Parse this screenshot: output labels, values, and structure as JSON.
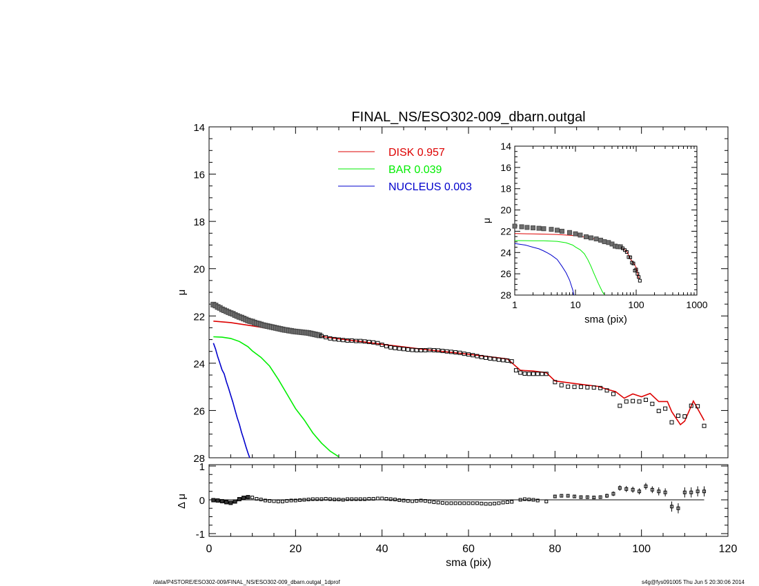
{
  "chart_data": [
    {
      "type": "scatter",
      "title": "FINAL_NS/ESO302-009_dbarn.outgal",
      "xlabel": "",
      "ylabel": "μ",
      "xlim": [
        0,
        120
      ],
      "ylim": [
        28,
        14
      ],
      "y_inverted": true,
      "grid": false,
      "legend_placement": "top-center",
      "xticks": [
        0,
        20,
        40,
        60,
        80,
        100,
        120
      ],
      "yticks": [
        14,
        16,
        18,
        20,
        22,
        24,
        26,
        28
      ],
      "data_points": {
        "name": "data",
        "x": [
          1.0,
          1.5,
          2.0,
          2.5,
          3.0,
          3.5,
          4.0,
          4.5,
          5.0,
          5.5,
          6.0,
          6.5,
          7.0,
          7.5,
          8.0,
          8.5,
          9.0,
          9.5,
          10.0,
          10.5,
          11.0,
          11.5,
          12.0,
          12.5,
          13.0,
          13.5,
          14.0,
          14.5,
          15.0,
          15.5,
          16.0,
          16.5,
          17.0,
          17.5,
          18.0,
          18.5,
          19.0,
          19.5,
          20.0,
          20.5,
          21.0,
          21.5,
          22.0,
          22.5,
          23.0,
          23.5,
          24.0,
          24.5,
          25.0,
          25.5,
          26.0,
          27.0,
          28.0,
          29.0,
          30.0,
          31.0,
          32.0,
          33.0,
          34.0,
          35.0,
          36.0,
          37.0,
          38.0,
          39.0,
          40.0,
          41.0,
          42.0,
          43.0,
          44.0,
          45.0,
          46.0,
          47.0,
          48.0,
          49.0,
          50.0,
          51.0,
          52.0,
          53.0,
          54.0,
          55.0,
          56.0,
          57.0,
          58.0,
          59.0,
          60.0,
          61.0,
          62.0,
          63.0,
          64.0,
          65.0,
          66.0,
          67.0,
          68.0,
          69.0,
          70.0,
          71.0,
          72.0,
          73.0,
          74.0,
          75.0,
          76.0,
          77.0,
          78.0,
          80.0,
          81.5,
          83.0,
          84.5,
          86.0,
          87.5,
          89.0,
          90.5,
          92.0,
          93.5,
          95.0,
          96.5,
          98.0,
          99.5,
          101.0,
          102.5,
          104.0,
          105.5,
          107.0,
          108.5,
          110.0,
          111.5,
          113.0,
          114.5
        ],
        "y": [
          21.52,
          21.56,
          21.62,
          21.66,
          21.72,
          21.76,
          21.8,
          21.84,
          21.88,
          21.91,
          21.96,
          22.0,
          22.04,
          22.07,
          22.11,
          22.15,
          22.19,
          22.22,
          22.24,
          22.28,
          22.31,
          22.33,
          22.36,
          22.39,
          22.41,
          22.43,
          22.45,
          22.47,
          22.49,
          22.51,
          22.53,
          22.55,
          22.57,
          22.59,
          22.6,
          22.62,
          22.63,
          22.65,
          22.66,
          22.67,
          22.68,
          22.69,
          22.7,
          22.71,
          22.72,
          22.74,
          22.76,
          22.78,
          22.8,
          22.82,
          22.85,
          22.9,
          22.95,
          22.98,
          23.0,
          23.02,
          23.04,
          23.04,
          23.06,
          23.06,
          23.08,
          23.1,
          23.12,
          23.15,
          23.22,
          23.28,
          23.33,
          23.36,
          23.38,
          23.4,
          23.42,
          23.44,
          23.45,
          23.45,
          23.45,
          23.44,
          23.45,
          23.46,
          23.48,
          23.5,
          23.52,
          23.54,
          23.56,
          23.6,
          23.63,
          23.66,
          23.7,
          23.74,
          23.77,
          23.8,
          23.82,
          23.85,
          23.87,
          23.89,
          23.92,
          24.3,
          24.4,
          24.44,
          24.45,
          24.45,
          24.45,
          24.45,
          24.45,
          24.8,
          24.93,
          24.99,
          25.0,
          25.0,
          25.02,
          25.03,
          25.05,
          25.15,
          25.3,
          25.8,
          25.62,
          25.6,
          25.62,
          25.55,
          25.72,
          26.02,
          25.92,
          26.5,
          26.22,
          26.25,
          25.8,
          25.82,
          26.65
        ]
      },
      "series": [
        {
          "name": "DISK",
          "label": "DISK  0.957",
          "color": "#dd0000",
          "x": [
            1,
            5,
            10,
            15,
            20,
            25,
            30,
            35,
            40,
            45,
            50,
            55,
            60,
            65,
            69,
            70,
            72,
            75,
            78,
            80,
            85,
            90,
            92,
            94,
            96,
            98,
            100,
            102,
            104,
            106,
            107,
            109,
            110,
            112,
            114.5
          ],
          "y": [
            22.22,
            22.28,
            22.42,
            22.57,
            22.71,
            22.84,
            22.97,
            23.08,
            23.2,
            23.31,
            23.42,
            23.52,
            23.62,
            23.73,
            23.82,
            23.98,
            24.3,
            24.33,
            24.4,
            24.75,
            24.87,
            24.98,
            25.1,
            25.2,
            25.48,
            25.3,
            25.42,
            25.28,
            25.62,
            25.62,
            26.05,
            26.6,
            26.45,
            25.6,
            26.42
          ]
        },
        {
          "name": "BAR",
          "label": "BAR  0.039",
          "color": "#00ee00",
          "x": [
            1,
            3,
            5,
            7,
            9,
            10,
            12,
            14,
            16,
            18,
            20,
            22,
            24,
            26,
            28,
            30
          ],
          "y": [
            22.88,
            22.9,
            22.95,
            23.08,
            23.3,
            23.48,
            23.75,
            24.12,
            24.68,
            25.3,
            25.92,
            26.4,
            26.95,
            27.38,
            27.72,
            27.96
          ]
        },
        {
          "name": "NUCLEUS",
          "label": "NUCLEUS  0.003",
          "color": "#0000cc",
          "x": [
            1,
            1.5,
            2,
            2.5,
            3,
            3.5,
            4,
            4.5,
            5,
            5.5,
            6,
            6.5,
            7,
            7.5,
            8,
            8.5,
            9,
            9.4
          ],
          "y": [
            23.15,
            23.4,
            23.72,
            24.0,
            24.28,
            24.45,
            24.78,
            25.05,
            25.35,
            25.65,
            25.98,
            26.3,
            26.58,
            26.92,
            27.2,
            27.52,
            27.8,
            28.0
          ]
        }
      ]
    },
    {
      "type": "scatter",
      "title": "",
      "xlabel": "sma (pix)",
      "ylabel": "μ",
      "x_scale": "log",
      "xlim": [
        1,
        1000
      ],
      "ylim": [
        28,
        14
      ],
      "y_inverted": true,
      "xticks": [
        1,
        10,
        100,
        1000
      ],
      "xtick_labels": [
        "1",
        "10",
        "100",
        "1000"
      ],
      "yticks": [
        14,
        16,
        18,
        20,
        22,
        24,
        26,
        28
      ],
      "data_points": {
        "name": "data",
        "x": [
          1.0,
          1.3,
          1.6,
          2.0,
          2.5,
          3.0,
          4.0,
          5.0,
          6.0,
          8.0,
          10.0,
          12.0,
          15.0,
          18.0,
          22.0,
          26.0,
          30.0,
          35.0,
          40.0,
          45.0,
          50.0,
          55.0,
          60.0,
          65.0,
          70.0,
          75.0,
          80.0,
          85.0,
          90.0,
          95.0,
          100.0,
          105.0,
          110.0,
          115.0
        ],
        "y": [
          21.52,
          21.58,
          21.64,
          21.68,
          21.72,
          21.76,
          21.82,
          21.9,
          22.0,
          22.12,
          22.24,
          22.36,
          22.52,
          22.62,
          22.72,
          22.84,
          22.98,
          23.06,
          23.2,
          23.4,
          23.45,
          23.46,
          23.6,
          23.77,
          23.95,
          24.43,
          24.45,
          24.95,
          25.03,
          25.7,
          25.6,
          26.0,
          26.3,
          26.65
        ]
      },
      "series": [
        {
          "name": "DISK",
          "color": "#dd0000",
          "x": [
            1,
            2,
            3,
            5,
            8,
            10,
            15,
            20,
            30,
            40,
            50,
            60,
            70,
            80,
            90,
            100,
            110,
            115
          ],
          "y": [
            22.22,
            22.25,
            22.27,
            22.3,
            22.38,
            22.42,
            22.57,
            22.71,
            22.97,
            23.2,
            23.42,
            23.62,
            23.9,
            24.6,
            24.98,
            25.4,
            26.4,
            26.42
          ]
        },
        {
          "name": "BAR",
          "color": "#00ee00",
          "x": [
            1,
            2,
            3,
            5,
            7,
            9,
            10,
            12,
            14,
            16,
            18,
            20,
            24,
            28,
            30
          ],
          "y": [
            22.88,
            22.89,
            22.9,
            22.95,
            23.08,
            23.3,
            23.48,
            23.75,
            24.12,
            24.68,
            25.3,
            25.92,
            26.95,
            27.72,
            27.96
          ]
        },
        {
          "name": "NUCLEUS",
          "color": "#0000cc",
          "x": [
            1,
            1.5,
            2,
            2.5,
            3,
            3.5,
            4,
            5,
            6,
            7,
            8,
            9,
            9.4
          ],
          "y": [
            23.15,
            23.3,
            23.5,
            23.65,
            23.85,
            24.05,
            24.25,
            24.65,
            25.3,
            25.9,
            26.6,
            27.5,
            28.0
          ]
        }
      ]
    },
    {
      "type": "scatter",
      "title": "",
      "xlabel": "sma (pix)",
      "ylabel": "Δ μ",
      "xlim": [
        0,
        120
      ],
      "ylim": [
        -1.1,
        1.0
      ],
      "xticks": [
        0,
        20,
        40,
        60,
        80,
        100,
        120
      ],
      "yticks": [
        -1,
        0,
        1
      ],
      "zero_line": true,
      "residuals": {
        "x": [
          1.0,
          2.0,
          3.0,
          4.0,
          5.0,
          6.0,
          7.0,
          8.0,
          9.0,
          10.0,
          11.0,
          12.0,
          13.0,
          14.0,
          15.0,
          16.0,
          17.0,
          18.0,
          19.0,
          20.0,
          21.0,
          22.0,
          23.0,
          24.0,
          25.0,
          26.0,
          27.0,
          28.0,
          29.0,
          30.0,
          31.0,
          32.0,
          33.0,
          34.0,
          35.0,
          36.0,
          37.0,
          38.0,
          39.0,
          40.0,
          41.0,
          42.0,
          43.0,
          44.0,
          45.0,
          46.0,
          47.0,
          48.0,
          49.0,
          50.0,
          51.0,
          52.0,
          53.0,
          54.0,
          55.0,
          56.0,
          57.0,
          58.0,
          59.0,
          60.0,
          61.0,
          62.0,
          63.0,
          64.0,
          65.0,
          66.0,
          67.0,
          68.0,
          69.0,
          70.0,
          72.0,
          73.0,
          74.0,
          75.0,
          76.0,
          78.0,
          80.0,
          81.5,
          83.0,
          84.5,
          86.0,
          87.5,
          89.0,
          90.5,
          92.0,
          93.5,
          95.0,
          96.5,
          98.0,
          99.5,
          101.0,
          102.5,
          104.0,
          105.5,
          107.0,
          108.5,
          110.0,
          111.5,
          113.0,
          114.5
        ],
        "y": [
          -0.01,
          -0.02,
          -0.04,
          -0.07,
          -0.09,
          -0.05,
          0.02,
          0.06,
          0.08,
          0.07,
          0.03,
          0.01,
          -0.02,
          -0.03,
          -0.04,
          -0.05,
          -0.05,
          -0.03,
          -0.02,
          -0.02,
          -0.01,
          0.0,
          0.01,
          0.02,
          0.02,
          0.02,
          0.03,
          0.02,
          0.01,
          0.01,
          0.0,
          0.02,
          0.02,
          0.02,
          0.02,
          0.02,
          0.03,
          0.03,
          0.04,
          0.04,
          0.03,
          0.02,
          0.01,
          -0.01,
          -0.02,
          -0.03,
          -0.04,
          -0.03,
          -0.02,
          -0.03,
          -0.05,
          -0.07,
          -0.08,
          -0.09,
          -0.1,
          -0.1,
          -0.1,
          -0.1,
          -0.1,
          -0.1,
          -0.1,
          -0.1,
          -0.11,
          -0.12,
          -0.12,
          -0.11,
          -0.1,
          -0.08,
          -0.07,
          -0.06,
          0.0,
          0.02,
          0.01,
          0.0,
          -0.02,
          -0.05,
          0.1,
          0.12,
          0.12,
          0.1,
          0.08,
          0.08,
          0.07,
          0.08,
          0.12,
          0.18,
          0.35,
          0.32,
          0.3,
          0.25,
          0.4,
          0.3,
          0.25,
          0.22,
          -0.2,
          -0.25,
          0.22,
          0.22,
          0.25,
          0.25
        ],
        "err": [
          0.02,
          0.02,
          0.02,
          0.02,
          0.02,
          0.02,
          0.02,
          0.02,
          0.02,
          0.02,
          0.02,
          0.02,
          0.02,
          0.02,
          0.02,
          0.02,
          0.02,
          0.02,
          0.02,
          0.02,
          0.02,
          0.02,
          0.02,
          0.02,
          0.02,
          0.02,
          0.02,
          0.02,
          0.02,
          0.02,
          0.02,
          0.02,
          0.02,
          0.02,
          0.02,
          0.02,
          0.02,
          0.02,
          0.02,
          0.02,
          0.02,
          0.02,
          0.02,
          0.02,
          0.02,
          0.02,
          0.02,
          0.02,
          0.02,
          0.02,
          0.02,
          0.02,
          0.02,
          0.02,
          0.02,
          0.02,
          0.02,
          0.02,
          0.02,
          0.02,
          0.02,
          0.02,
          0.02,
          0.02,
          0.02,
          0.02,
          0.02,
          0.02,
          0.02,
          0.02,
          0.03,
          0.03,
          0.03,
          0.03,
          0.03,
          0.03,
          0.04,
          0.04,
          0.04,
          0.04,
          0.04,
          0.05,
          0.05,
          0.05,
          0.06,
          0.07,
          0.08,
          0.09,
          0.09,
          0.09,
          0.1,
          0.1,
          0.12,
          0.12,
          0.15,
          0.15,
          0.15,
          0.15,
          0.15,
          0.15
        ]
      },
      "data_line": [
        {
          "x": 1,
          "y": -0.01
        },
        {
          "x": 2,
          "y": -0.02
        },
        {
          "x": 3,
          "y": -0.04
        },
        {
          "x": 4,
          "y": -0.07
        },
        {
          "x": 5,
          "y": -0.09
        },
        {
          "x": 6,
          "y": -0.05
        },
        {
          "x": 7,
          "y": 0.02
        },
        {
          "x": 8,
          "y": 0.06
        },
        {
          "x": 9,
          "y": 0.08
        }
      ]
    }
  ],
  "footer": {
    "left": "/data/P4STORE/ESO302-009/FINAL_NS/ESO302-009_dbarn.outgal_1dprof",
    "right": "s4g@fys091005  Thu Jun  5 20:30:06 2014"
  }
}
